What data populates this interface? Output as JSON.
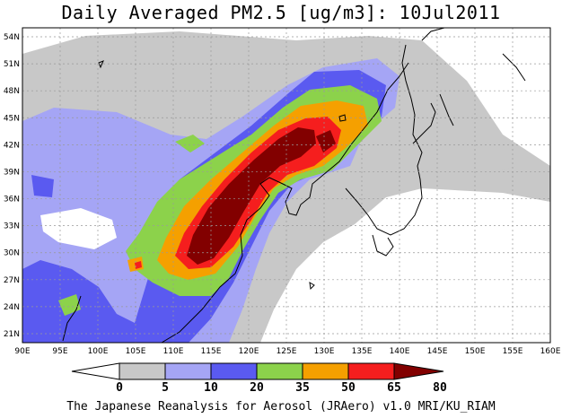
{
  "title": "Daily Averaged PM2.5 [ug/m3]: 10Jul2011",
  "footer": "The Japanese Reanalysis for Aerosol (JRAero) v1.0 MRI/KU_RIAM",
  "map": {
    "lon_range": [
      90,
      160
    ],
    "lat_range": [
      20,
      55
    ],
    "lon_labels": [
      "90E",
      "95E",
      "100E",
      "105E",
      "110E",
      "115E",
      "120E",
      "125E",
      "130E",
      "135E",
      "140E",
      "145E",
      "150E",
      "155E",
      "160E"
    ],
    "lat_labels": [
      "21N",
      "24N",
      "27N",
      "30N",
      "33N",
      "36N",
      "39N",
      "42N",
      "45N",
      "48N",
      "51N",
      "54N"
    ]
  },
  "legend": {
    "ticks": [
      "0",
      "5",
      "10",
      "20",
      "35",
      "50",
      "65",
      "80"
    ],
    "colors": [
      "#ffffff",
      "#c8c8c8",
      "#a5a5f5",
      "#5a5af0",
      "#8cd24b",
      "#f5a000",
      "#f51e1e",
      "#820000"
    ]
  }
}
